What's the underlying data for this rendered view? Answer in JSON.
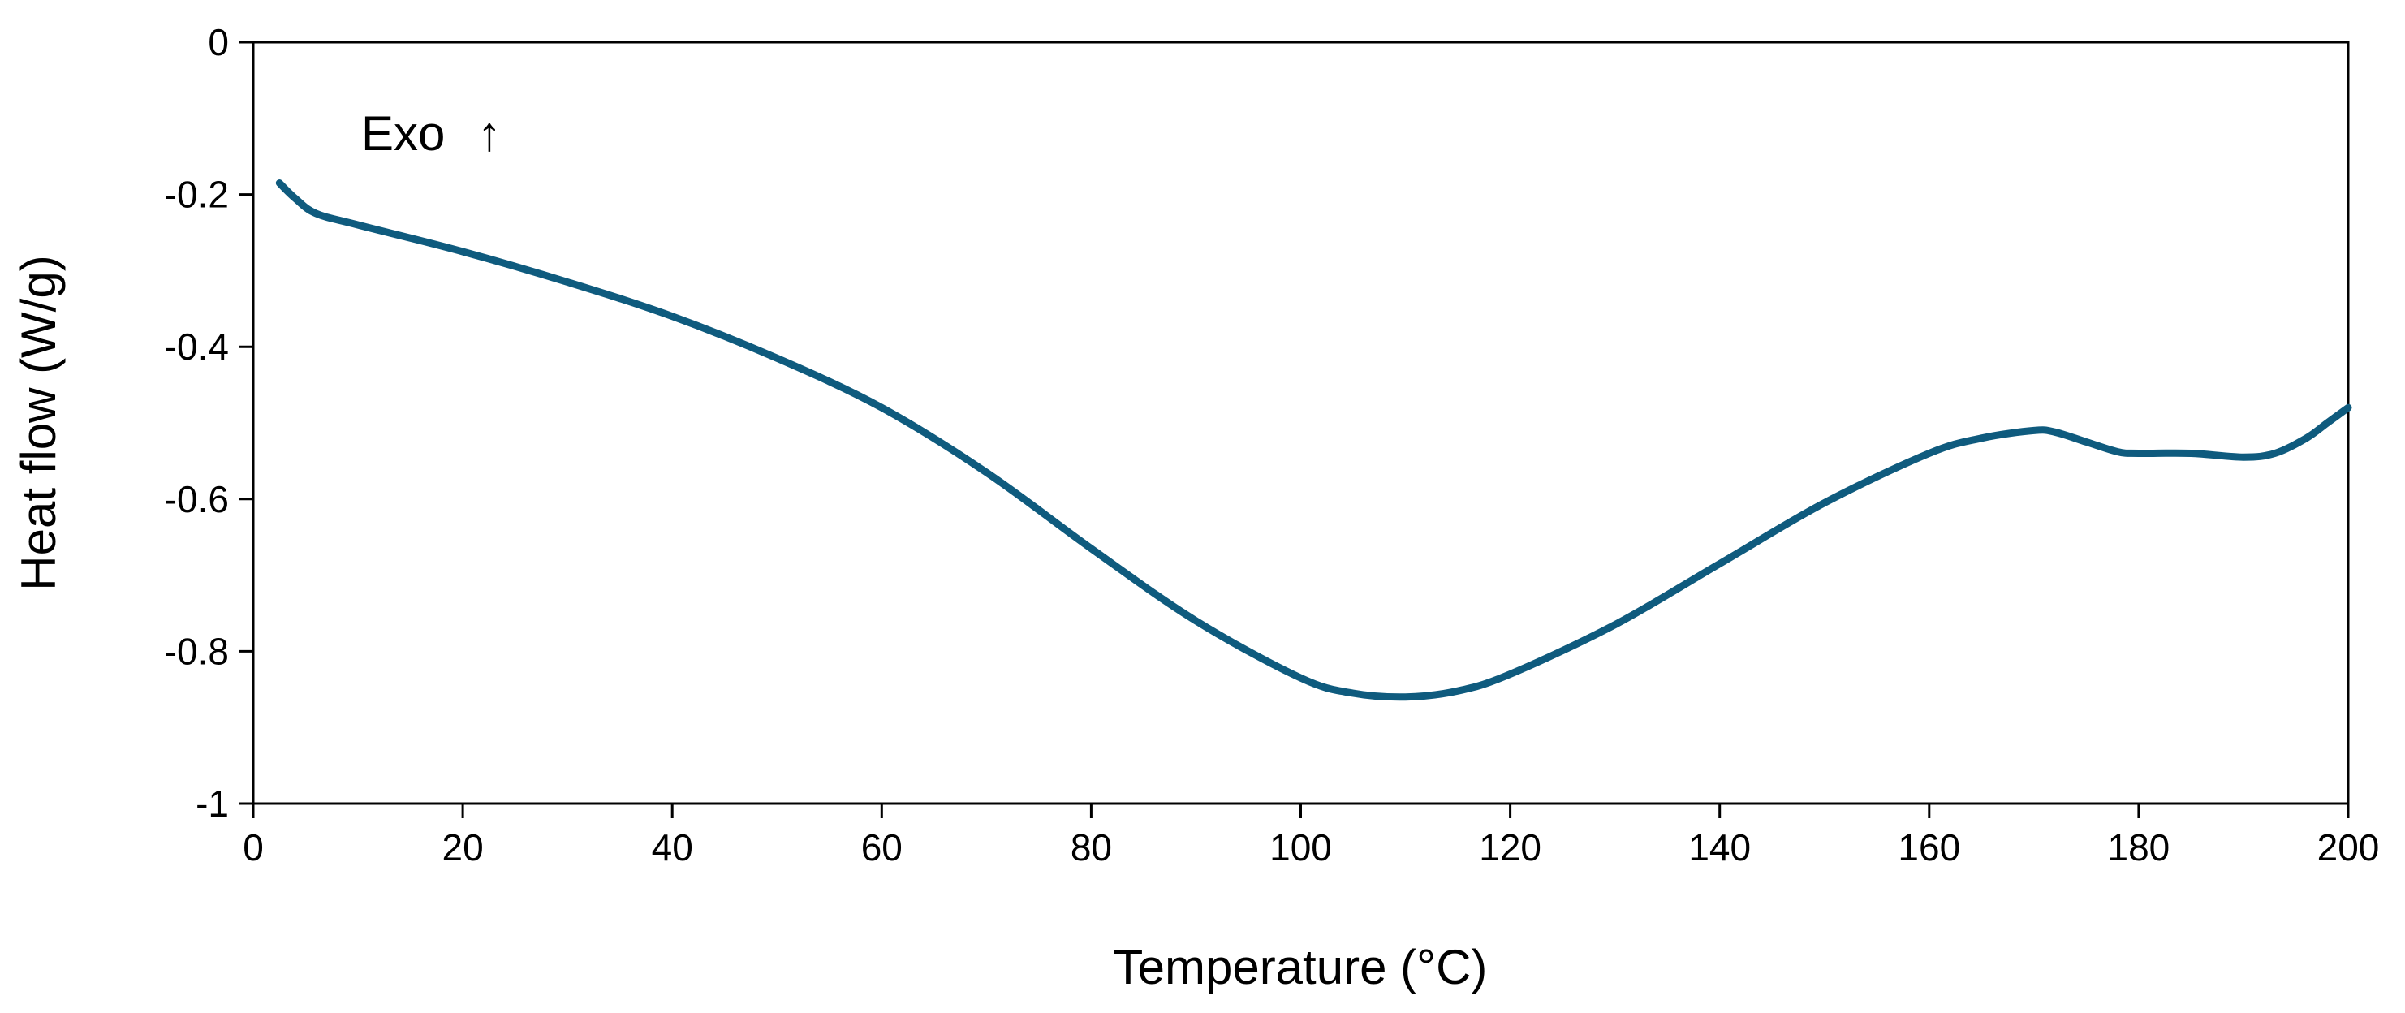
{
  "chart_data": {
    "type": "line",
    "title": "",
    "xlabel": "Temperature (°C)",
    "ylabel": "Heat flow (W/g)",
    "xlim": [
      0,
      200
    ],
    "ylim": [
      -1,
      0
    ],
    "x_ticks": [
      "0",
      "20",
      "40",
      "60",
      "80",
      "100",
      "120",
      "140",
      "160",
      "180",
      "200"
    ],
    "y_ticks": [
      "0",
      "-0.2",
      "-0.4",
      "-0.6",
      "-0.8",
      "-1"
    ],
    "grid": false,
    "legend": "none",
    "annotation": "Exo",
    "annotation_arrow": "↑",
    "series": [
      {
        "name": "Heat flow",
        "color": "#0f5b7e",
        "x": [
          2.5,
          4,
          6,
          10,
          20,
          30,
          40,
          50,
          60,
          70,
          80,
          90,
          100,
          105,
          110,
          115,
          120,
          130,
          140,
          150,
          160,
          165,
          170,
          172,
          175,
          178,
          180,
          185,
          190,
          193,
          196,
          198,
          200
        ],
        "y": [
          -0.185,
          -0.205,
          -0.225,
          -0.24,
          -0.275,
          -0.315,
          -0.36,
          -0.415,
          -0.48,
          -0.565,
          -0.665,
          -0.76,
          -0.835,
          -0.855,
          -0.86,
          -0.852,
          -0.83,
          -0.765,
          -0.685,
          -0.605,
          -0.54,
          -0.52,
          -0.51,
          -0.512,
          -0.525,
          -0.538,
          -0.54,
          -0.54,
          -0.545,
          -0.54,
          -0.52,
          -0.5,
          -0.48
        ]
      }
    ]
  }
}
